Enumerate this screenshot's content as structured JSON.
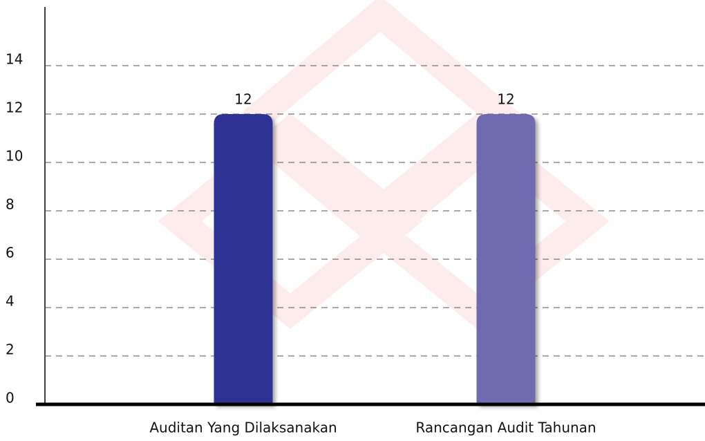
{
  "chart_data": {
    "type": "bar",
    "categories": [
      "Auditan Yang Dilaksanakan",
      "Rancangan Audit Tahunan"
    ],
    "values": [
      12,
      12
    ],
    "colors": [
      "#2e3192",
      "#6f6bb0"
    ],
    "ylim": [
      0,
      16
    ],
    "yticks": [
      0,
      2,
      4,
      6,
      8,
      10,
      12,
      14
    ],
    "grid": true
  }
}
